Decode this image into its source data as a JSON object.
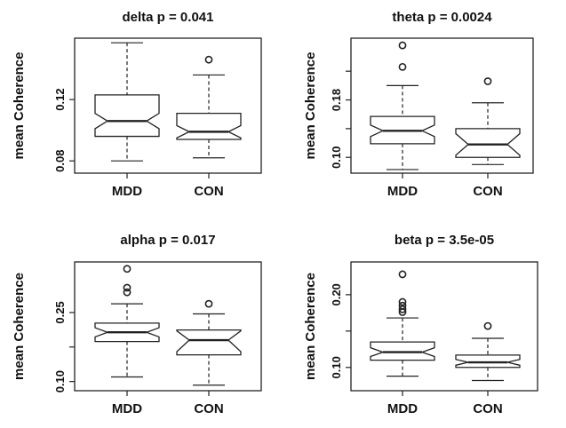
{
  "chart_data": [
    {
      "type": "boxplot",
      "title": "delta p = 0.041",
      "ylabel": "mean Coherence",
      "categories": [
        "MDD",
        "CON"
      ],
      "ylim": [
        0.072,
        0.16
      ],
      "yticks": [
        0.08,
        0.12
      ],
      "yticks_labeled": [
        "0.08",
        "0.12"
      ],
      "boxes": [
        {
          "category": "MDD",
          "whisker_low": 0.08,
          "q1": 0.096,
          "notch_low": 0.101,
          "median": 0.106,
          "notch_high": 0.111,
          "q3": 0.123,
          "whisker_high": 0.157,
          "outliers": []
        },
        {
          "category": "CON",
          "whisker_low": 0.082,
          "q1": 0.094,
          "notch_low": 0.095,
          "median": 0.099,
          "notch_high": 0.103,
          "q3": 0.111,
          "whisker_high": 0.136,
          "outliers": [
            0.146
          ]
        }
      ]
    },
    {
      "type": "boxplot",
      "title": "theta p = 0.0024",
      "ylabel": "mean Coherence",
      "categories": [
        "MDD",
        "CON"
      ],
      "ylim": [
        0.078,
        0.266
      ],
      "yticks": [
        0.1,
        0.14,
        0.18,
        0.22
      ],
      "yticks_labeled": [
        "0.10",
        "0.18"
      ],
      "boxes": [
        {
          "category": "MDD",
          "whisker_low": 0.083,
          "q1": 0.119,
          "notch_low": 0.129,
          "median": 0.137,
          "notch_high": 0.145,
          "q3": 0.157,
          "whisker_high": 0.2,
          "outliers": [
            0.226,
            0.256
          ]
        },
        {
          "category": "CON",
          "whisker_low": 0.09,
          "q1": 0.1,
          "notch_low": 0.103,
          "median": 0.118,
          "notch_high": 0.133,
          "q3": 0.14,
          "whisker_high": 0.176,
          "outliers": [
            0.206
          ]
        }
      ]
    },
    {
      "type": "boxplot",
      "title": "alpha p = 0.017",
      "ylabel": "mean Coherence",
      "categories": [
        "MDD",
        "CON"
      ],
      "ylim": [
        0.08,
        0.36
      ],
      "yticks": [
        0.1,
        0.175,
        0.25
      ],
      "yticks_labeled": [
        "0.10",
        "0.25"
      ],
      "boxes": [
        {
          "category": "MDD",
          "whisker_low": 0.11,
          "q1": 0.187,
          "notch_low": 0.197,
          "median": 0.207,
          "notch_high": 0.217,
          "q3": 0.227,
          "whisker_high": 0.269,
          "outliers": [
            0.294,
            0.304,
            0.345
          ]
        },
        {
          "category": "CON",
          "whisker_low": 0.092,
          "q1": 0.158,
          "notch_low": 0.165,
          "median": 0.19,
          "notch_high": 0.21,
          "q3": 0.212,
          "whisker_high": 0.247,
          "outliers": [
            0.269
          ]
        }
      ]
    },
    {
      "type": "boxplot",
      "title": "beta p = 3.5e-05",
      "ylabel": "mean Coherence",
      "categories": [
        "MDD",
        "CON"
      ],
      "ylim": [
        0.068,
        0.245
      ],
      "yticks": [
        0.1,
        0.15,
        0.2
      ],
      "yticks_labeled": [
        "0.10",
        "0.20"
      ],
      "boxes": [
        {
          "category": "MDD",
          "whisker_low": 0.088,
          "q1": 0.11,
          "notch_low": 0.115,
          "median": 0.121,
          "notch_high": 0.127,
          "q3": 0.135,
          "whisker_high": 0.168,
          "outliers": [
            0.176,
            0.18,
            0.185,
            0.19,
            0.228
          ]
        },
        {
          "category": "CON",
          "whisker_low": 0.082,
          "q1": 0.1,
          "notch_low": 0.103,
          "median": 0.107,
          "notch_high": 0.111,
          "q3": 0.117,
          "whisker_high": 0.14,
          "outliers": [
            0.157
          ]
        }
      ]
    }
  ]
}
